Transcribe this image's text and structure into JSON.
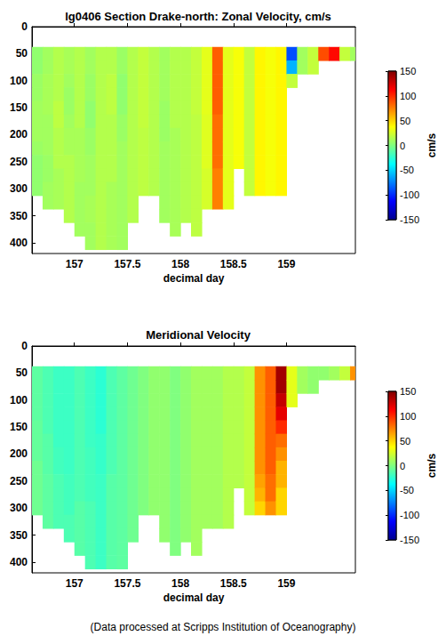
{
  "chart_data": [
    {
      "type": "heatmap",
      "title": "lg0406 Section Drake-north: Zonal Velocity, cm/s",
      "xlabel": "decimal day",
      "x": [
        156.65,
        156.75,
        156.85,
        156.95,
        157.05,
        157.15,
        157.25,
        157.35,
        157.45,
        157.55,
        157.65,
        157.75,
        157.85,
        157.95,
        158.05,
        158.15,
        158.25,
        158.35,
        158.45,
        158.55,
        158.65,
        158.75,
        158.85,
        158.95,
        159.05,
        159.15,
        159.25,
        159.35,
        159.45,
        159.55,
        159.65
      ],
      "y": [
        50,
        75,
        100,
        125,
        150,
        175,
        200,
        225,
        250,
        275,
        300,
        325,
        350,
        375,
        400
      ],
      "values": [
        [
          5,
          5,
          8,
          8,
          10,
          10,
          10,
          8,
          5,
          5,
          5,
          null,
          null,
          null,
          null
        ],
        [
          10,
          10,
          12,
          12,
          12,
          10,
          10,
          10,
          8,
          8,
          10,
          10,
          null,
          null,
          null
        ],
        [
          15,
          15,
          15,
          15,
          18,
          18,
          15,
          15,
          15,
          12,
          12,
          12,
          null,
          null,
          null
        ],
        [
          12,
          12,
          10,
          8,
          8,
          10,
          12,
          12,
          15,
          15,
          15,
          15,
          15,
          null,
          null
        ],
        [
          15,
          15,
          15,
          15,
          15,
          15,
          12,
          12,
          12,
          12,
          10,
          10,
          10,
          10,
          null
        ],
        [
          10,
          10,
          8,
          8,
          5,
          5,
          8,
          8,
          10,
          10,
          10,
          12,
          12,
          10,
          10
        ],
        [
          15,
          15,
          15,
          15,
          15,
          15,
          15,
          15,
          15,
          15,
          15,
          15,
          15,
          15,
          15
        ],
        [
          15,
          15,
          18,
          18,
          18,
          15,
          15,
          15,
          15,
          15,
          12,
          12,
          12,
          12,
          12
        ],
        [
          8,
          8,
          5,
          5,
          5,
          8,
          8,
          10,
          10,
          10,
          10,
          10,
          10,
          10,
          10
        ],
        [
          15,
          15,
          15,
          15,
          15,
          15,
          15,
          15,
          15,
          15,
          15,
          15,
          15,
          null,
          null
        ],
        [
          20,
          20,
          20,
          20,
          20,
          20,
          18,
          18,
          18,
          18,
          18,
          null,
          null,
          null,
          null
        ],
        [
          15,
          15,
          15,
          15,
          15,
          15,
          15,
          15,
          15,
          15,
          15,
          null,
          null,
          null,
          null
        ],
        [
          10,
          10,
          10,
          10,
          8,
          8,
          8,
          10,
          10,
          10,
          10,
          10,
          10,
          null,
          null
        ],
        [
          15,
          15,
          15,
          15,
          15,
          15,
          12,
          12,
          12,
          12,
          12,
          12,
          12,
          12,
          null
        ],
        [
          15,
          15,
          15,
          15,
          15,
          15,
          15,
          15,
          15,
          15,
          15,
          15,
          15,
          null,
          null
        ],
        [
          20,
          20,
          20,
          20,
          20,
          18,
          18,
          18,
          18,
          18,
          18,
          18,
          18,
          18,
          null
        ],
        [
          30,
          30,
          30,
          30,
          30,
          28,
          28,
          28,
          28,
          25,
          25,
          25,
          null,
          null,
          null
        ],
        [
          85,
          85,
          85,
          85,
          85,
          80,
          80,
          80,
          80,
          75,
          75,
          75,
          null,
          null,
          null
        ],
        [
          30,
          30,
          30,
          30,
          30,
          30,
          30,
          30,
          30,
          30,
          30,
          30,
          null,
          null,
          null
        ],
        [
          35,
          35,
          35,
          35,
          35,
          35,
          35,
          35,
          35,
          null,
          null,
          null,
          null,
          null,
          null
        ],
        [
          20,
          20,
          20,
          20,
          20,
          20,
          20,
          20,
          20,
          20,
          20,
          null,
          null,
          null,
          null
        ],
        [
          40,
          40,
          40,
          40,
          40,
          40,
          40,
          40,
          40,
          40,
          40,
          null,
          null,
          null,
          null
        ],
        [
          35,
          35,
          35,
          35,
          35,
          35,
          35,
          35,
          35,
          35,
          35,
          null,
          null,
          null,
          null
        ],
        [
          40,
          40,
          40,
          40,
          40,
          40,
          40,
          40,
          40,
          40,
          40,
          null,
          null,
          null,
          null
        ],
        [
          -90,
          -60,
          20,
          null,
          null,
          null,
          null,
          null,
          null,
          null,
          null,
          null,
          null,
          null,
          null
        ],
        [
          10,
          10,
          null,
          null,
          null,
          null,
          null,
          null,
          null,
          null,
          null,
          null,
          null,
          null,
          null
        ],
        [
          20,
          20,
          null,
          null,
          null,
          null,
          null,
          null,
          null,
          null,
          null,
          null,
          null,
          null,
          null
        ],
        [
          90,
          null,
          null,
          null,
          null,
          null,
          null,
          null,
          null,
          null,
          null,
          null,
          null,
          null,
          null
        ],
        [
          110,
          null,
          null,
          null,
          null,
          null,
          null,
          null,
          null,
          null,
          null,
          null,
          null,
          null,
          null
        ],
        [
          20,
          null,
          null,
          null,
          null,
          null,
          null,
          null,
          null,
          null,
          null,
          null,
          null,
          null,
          null
        ],
        [
          10,
          null,
          null,
          null,
          null,
          null,
          null,
          null,
          null,
          null,
          null,
          null,
          null,
          null,
          null
        ]
      ],
      "xlim": [
        156.6,
        159.65
      ],
      "xticks": [
        157,
        157.5,
        158,
        158.5,
        159
      ],
      "ylim": [
        0,
        420
      ],
      "yticks": [
        0,
        50,
        100,
        150,
        200,
        250,
        300,
        350,
        400
      ],
      "colorbar": {
        "range": [
          -150,
          150
        ],
        "ticks": [
          -150,
          -100,
          -50,
          0,
          50,
          100,
          150
        ],
        "label": "cm/s"
      }
    },
    {
      "type": "heatmap",
      "title": "Meridional Velocity",
      "xlabel": "decimal day",
      "x": [
        156.65,
        156.75,
        156.85,
        156.95,
        157.05,
        157.15,
        157.25,
        157.35,
        157.45,
        157.55,
        157.65,
        157.75,
        157.85,
        157.95,
        158.05,
        158.15,
        158.25,
        158.35,
        158.45,
        158.55,
        158.65,
        158.75,
        158.85,
        158.95,
        159.05,
        159.15,
        159.25,
        159.35,
        159.45,
        159.55,
        159.65
      ],
      "y": [
        50,
        75,
        100,
        125,
        150,
        175,
        200,
        225,
        250,
        275,
        300,
        325,
        350,
        375,
        400
      ],
      "values": [
        [
          -10,
          -10,
          -10,
          -10,
          -8,
          -8,
          -8,
          -5,
          -5,
          -5,
          -5,
          null,
          null,
          null,
          null
        ],
        [
          -15,
          -15,
          -15,
          -15,
          -15,
          -12,
          -12,
          -12,
          -10,
          -10,
          -10,
          -10,
          null,
          null,
          null
        ],
        [
          -20,
          -20,
          -20,
          -20,
          -20,
          -20,
          -18,
          -18,
          -15,
          -15,
          -15,
          -15,
          null,
          null,
          null
        ],
        [
          -20,
          -20,
          -20,
          -20,
          -20,
          -20,
          -20,
          -20,
          -18,
          -18,
          -18,
          -15,
          -15,
          null,
          null
        ],
        [
          -15,
          -15,
          -15,
          -15,
          -15,
          -15,
          -15,
          -15,
          -15,
          -15,
          -12,
          -12,
          -12,
          -12,
          null
        ],
        [
          -20,
          -20,
          -20,
          -20,
          -20,
          -20,
          -18,
          -18,
          -18,
          -18,
          -15,
          -15,
          -15,
          -15,
          -15
        ],
        [
          -25,
          -25,
          -25,
          -25,
          -25,
          -22,
          -22,
          -22,
          -20,
          -20,
          -20,
          -20,
          -20,
          -20,
          -20
        ],
        [
          -15,
          -15,
          -15,
          -15,
          -15,
          -15,
          -15,
          -15,
          -12,
          -12,
          -12,
          -12,
          -12,
          -12,
          -12
        ],
        [
          -10,
          -10,
          -10,
          -10,
          -10,
          -10,
          -10,
          -10,
          -10,
          -10,
          -10,
          -10,
          -10,
          -10,
          -10
        ],
        [
          -5,
          -5,
          -5,
          -5,
          -5,
          -5,
          -5,
          -5,
          -5,
          -5,
          -5,
          -5,
          -5,
          null,
          null
        ],
        [
          0,
          0,
          0,
          0,
          0,
          0,
          0,
          0,
          0,
          0,
          0,
          null,
          null,
          null,
          null
        ],
        [
          5,
          5,
          5,
          5,
          5,
          5,
          5,
          5,
          5,
          5,
          5,
          null,
          null,
          null,
          null
        ],
        [
          5,
          5,
          5,
          5,
          5,
          5,
          5,
          5,
          5,
          5,
          5,
          5,
          5,
          null,
          null
        ],
        [
          0,
          0,
          0,
          0,
          0,
          0,
          0,
          0,
          0,
          0,
          0,
          0,
          0,
          0,
          null
        ],
        [
          5,
          5,
          5,
          5,
          5,
          5,
          5,
          5,
          5,
          5,
          5,
          5,
          5,
          null,
          null
        ],
        [
          10,
          10,
          10,
          10,
          10,
          10,
          10,
          10,
          10,
          10,
          10,
          10,
          10,
          10,
          null
        ],
        [
          10,
          10,
          10,
          10,
          10,
          10,
          10,
          10,
          10,
          10,
          10,
          10,
          null,
          null,
          null
        ],
        [
          10,
          10,
          10,
          10,
          10,
          10,
          10,
          10,
          10,
          10,
          10,
          10,
          null,
          null,
          null
        ],
        [
          15,
          15,
          15,
          15,
          15,
          15,
          15,
          15,
          15,
          15,
          15,
          15,
          null,
          null,
          null
        ],
        [
          15,
          15,
          15,
          15,
          15,
          15,
          15,
          15,
          15,
          null,
          null,
          null,
          null,
          null,
          null
        ],
        [
          20,
          20,
          20,
          20,
          20,
          20,
          20,
          20,
          20,
          20,
          20,
          null,
          null,
          null,
          null
        ],
        [
          70,
          70,
          70,
          70,
          70,
          70,
          70,
          70,
          65,
          60,
          50,
          null,
          null,
          null,
          null
        ],
        [
          85,
          85,
          85,
          85,
          85,
          85,
          85,
          85,
          80,
          80,
          70,
          null,
          null,
          null,
          null
        ],
        [
          140,
          140,
          130,
          120,
          100,
          80,
          70,
          60,
          60,
          50,
          50,
          null,
          null,
          null,
          null
        ],
        [
          30,
          30,
          30,
          null,
          null,
          null,
          null,
          null,
          null,
          null,
          null,
          null,
          null,
          null,
          null
        ],
        [
          10,
          10,
          null,
          null,
          null,
          null,
          null,
          null,
          null,
          null,
          null,
          null,
          null,
          null,
          null
        ],
        [
          5,
          5,
          null,
          null,
          null,
          null,
          null,
          null,
          null,
          null,
          null,
          null,
          null,
          null,
          null
        ],
        [
          5,
          null,
          null,
          null,
          null,
          null,
          null,
          null,
          null,
          null,
          null,
          null,
          null,
          null,
          null
        ],
        [
          10,
          null,
          null,
          null,
          null,
          null,
          null,
          null,
          null,
          null,
          null,
          null,
          null,
          null,
          null
        ],
        [
          20,
          null,
          null,
          null,
          null,
          null,
          null,
          null,
          null,
          null,
          null,
          null,
          null,
          null,
          null
        ],
        [
          70,
          null,
          null,
          null,
          null,
          null,
          null,
          null,
          null,
          null,
          null,
          null,
          null,
          null,
          null
        ]
      ],
      "xlim": [
        156.6,
        159.65
      ],
      "xticks": [
        157,
        157.5,
        158,
        158.5,
        159
      ],
      "ylim": [
        0,
        420
      ],
      "yticks": [
        0,
        50,
        100,
        150,
        200,
        250,
        300,
        350,
        400
      ],
      "colorbar": {
        "range": [
          -150,
          150
        ],
        "ticks": [
          -150,
          -100,
          -50,
          0,
          50,
          100,
          150
        ],
        "label": "cm/s"
      },
      "annotations": [
        "(Data processed at Scripps Institution of Oceanography)"
      ]
    }
  ]
}
